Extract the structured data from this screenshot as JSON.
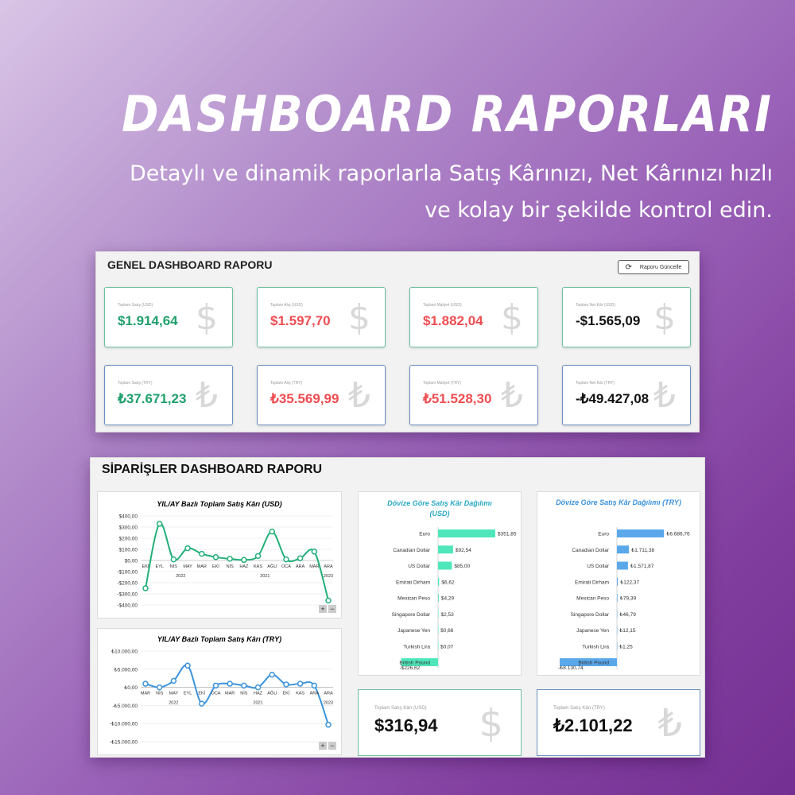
{
  "hero": {
    "title": "DASHBOARD RAPORLARI",
    "subtitle": "Detaylı ve dinamik raporlarla Satış Kârınızı, Net Kârınızı hızlı ve kolay bir şekilde kontrol edin."
  },
  "general": {
    "title": "GENEL DASHBOARD RAPORU",
    "refresh_label": "Raporu Güncelle",
    "cards": [
      {
        "label": "Toplam Satış (USD)",
        "value": "$1.914,64",
        "symbol": "$",
        "tone": "green"
      },
      {
        "label": "Toplam Alış (USD)",
        "value": "$1.597,70",
        "symbol": "$",
        "tone": "red"
      },
      {
        "label": "Toplam Maliyet (USD)",
        "value": "$1.882,04",
        "symbol": "$",
        "tone": "red"
      },
      {
        "label": "Toplam Net Kâr (USD)",
        "value": "-$1.565,09",
        "symbol": "$",
        "tone": "black"
      },
      {
        "label": "Toplam Satış (TRY)",
        "value": "₺37.671,23",
        "symbol": "₺",
        "tone": "green"
      },
      {
        "label": "Toplam Alış (TRY)",
        "value": "₺35.569,99",
        "symbol": "₺",
        "tone": "red"
      },
      {
        "label": "Toplam Maliyet (TRY)",
        "value": "₺51.528,30",
        "symbol": "₺",
        "tone": "red"
      },
      {
        "label": "Toplam Net Kâr (TRY)",
        "value": "-₺49.427,08",
        "symbol": "₺",
        "tone": "black"
      }
    ]
  },
  "orders": {
    "title": "SİPARİŞLER DASHBOARD RAPORU",
    "usd_total": {
      "label": "Toplam Satış Kârı (USD)",
      "value": "$316,94",
      "symbol": "$"
    },
    "try_total": {
      "label": "Toplam Satış Kârı (TRY)",
      "value": "₺2.101,22",
      "symbol": "₺"
    },
    "zoom_plus": "+",
    "zoom_minus": "−"
  },
  "chart_data": [
    {
      "type": "line",
      "title": "YIL/AY Bazlı Toplam Satış Kârı (USD)",
      "color": "#22b07a",
      "categories": [
        "EKİ",
        "EYL",
        "NİS",
        "MAY",
        "MAR",
        "EKİ",
        "NİS",
        "HAZ",
        "KAS",
        "AĞU",
        "OCA",
        "ARA",
        "MAR",
        "ARA"
      ],
      "year_labels": [
        {
          "text": "2022",
          "at": 2.5
        },
        {
          "text": "2021",
          "at": 8.5
        },
        {
          "text": "2023",
          "at": 13
        }
      ],
      "values": [
        -250,
        330,
        10,
        110,
        60,
        30,
        15,
        5,
        40,
        260,
        10,
        20,
        80,
        -360
      ],
      "ylim": [
        -400,
        400
      ],
      "yticks": [
        "$400,00",
        "$300,00",
        "$200,00",
        "$100,00",
        "$0,00",
        "-$100,00",
        "-$200,00",
        "-$300,00",
        "-$400,00"
      ]
    },
    {
      "type": "line",
      "title": "YIL/AY Bazlı Toplam Satış Kârı (TRY)",
      "color": "#3b93dc",
      "categories": [
        "MAR",
        "NİS",
        "MAY",
        "EYL",
        "EKİ",
        "OCA",
        "MAR",
        "NİS",
        "HAZ",
        "AĞU",
        "EKİ",
        "KAS",
        "ARA",
        "ARA"
      ],
      "year_labels": [
        {
          "text": "2022",
          "at": 2
        },
        {
          "text": "2021",
          "at": 8
        },
        {
          "text": "2023",
          "at": 13
        }
      ],
      "values": [
        1000,
        0,
        1800,
        6000,
        -4500,
        500,
        1000,
        500,
        0,
        3500,
        800,
        1000,
        500,
        -10300
      ],
      "ylim": [
        -15000,
        10000
      ],
      "yticks": [
        "₺10.000,00",
        "₺5.000,00",
        "₺0,00",
        "-₺5.000,00",
        "-₺10.000,00",
        "-₺15.000,00"
      ]
    },
    {
      "type": "bar",
      "title": "Dövize Göre Satış Kâr Dağılımı (USD)",
      "color": "#4fe6bb",
      "categories": [
        "Euro",
        "Canadian Dollar",
        "US Dollar",
        "Emirati Dirham",
        "Mexican Peso",
        "Singapore Dollar",
        "Japanese Yen",
        "Turkish Lira",
        "British Pound"
      ],
      "values": [
        351.85,
        92.54,
        85.0,
        6.62,
        4.29,
        2.53,
        0.66,
        0.07,
        -226.62
      ],
      "value_labels": [
        "$351,85",
        "$92,54",
        "$85,00",
        "$6,62",
        "$4,29",
        "$2,53",
        "$0,66",
        "$0,07",
        "-$226,62"
      ]
    },
    {
      "type": "bar",
      "title": "Dövize Göre Satış Kâr Dağılımı (TRY)",
      "color": "#5aa8ea",
      "categories": [
        "Euro",
        "Canadian Dollar",
        "US Dollar",
        "Emirati Dirham",
        "Mexican Peso",
        "Singapore Dollar",
        "Japanese Yen",
        "Turkish Lira",
        "British Pound"
      ],
      "values": [
        6686.76,
        1711.38,
        1571.87,
        122.37,
        79.39,
        46.79,
        12.15,
        1.25,
        -8130.74
      ],
      "value_labels": [
        "₺6.686,76",
        "₺1.711,38",
        "₺1.571,87",
        "₺122,37",
        "₺79,39",
        "₺46,79",
        "₺12,15",
        "₺1,25",
        "-₺8.130,74"
      ]
    }
  ]
}
